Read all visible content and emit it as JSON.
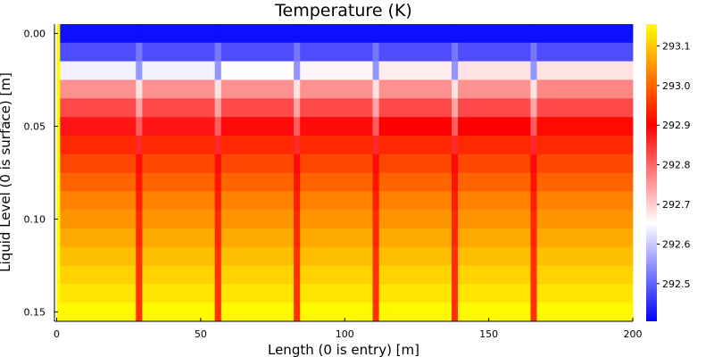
{
  "chart_data": {
    "type": "heatmap",
    "title": "Temperature (K)",
    "xlabel": "Length (0 is entry) [m]",
    "ylabel": "Liquid Level (0 is surface) [m]",
    "xlim": [
      0,
      200
    ],
    "ylim": [
      0.0,
      0.155
    ],
    "y_inverted": true,
    "grid": false,
    "x_ticks": [
      0,
      50,
      100,
      150,
      200
    ],
    "x_tick_labels": [
      "0",
      "50",
      "100",
      "150",
      "200"
    ],
    "y_ticks": [
      0.0,
      0.05,
      0.1,
      0.15
    ],
    "y_tick_labels": [
      "0.00",
      "0.05",
      "0.10",
      "0.15"
    ],
    "x_cell_edges": [
      0,
      1.2,
      27.5,
      29.7,
      54.9,
      57.1,
      82.3,
      84.5,
      109.7,
      111.9,
      137.1,
      139.3,
      164.5,
      166.7,
      200
    ],
    "y_cell_edges": [
      -0.005,
      0.005,
      0.015,
      0.025,
      0.035,
      0.045,
      0.055,
      0.065,
      0.075,
      0.085,
      0.095,
      0.105,
      0.115,
      0.125,
      0.135,
      0.145,
      0.155
    ],
    "row_depths": [
      0.0,
      0.01,
      0.02,
      0.03,
      0.04,
      0.05,
      0.06,
      0.07,
      0.08,
      0.09,
      0.1,
      0.11,
      0.12,
      0.13,
      0.14,
      0.15
    ],
    "values": [
      [
        293.15,
        292.42,
        292.42,
        292.42,
        292.42,
        292.42,
        292.42,
        292.42,
        292.42,
        292.42,
        292.42,
        292.42,
        292.42,
        292.42
      ],
      [
        293.15,
        292.48,
        292.52,
        292.48,
        292.52,
        292.48,
        292.52,
        292.48,
        292.52,
        292.48,
        292.52,
        292.48,
        292.52,
        292.48
      ],
      [
        293.15,
        292.64,
        292.55,
        292.64,
        292.55,
        292.65,
        292.55,
        292.66,
        292.55,
        292.67,
        292.55,
        292.68,
        292.55,
        292.68
      ],
      [
        293.15,
        292.76,
        292.68,
        292.76,
        292.68,
        292.76,
        292.68,
        292.76,
        292.68,
        292.76,
        292.68,
        292.76,
        292.68,
        292.77
      ],
      [
        293.15,
        292.83,
        292.74,
        292.83,
        292.74,
        292.83,
        292.74,
        292.83,
        292.74,
        292.83,
        292.74,
        292.83,
        292.74,
        292.83
      ],
      [
        293.15,
        292.88,
        292.81,
        292.88,
        292.81,
        292.89,
        292.81,
        292.89,
        292.81,
        292.9,
        292.81,
        292.9,
        292.81,
        292.91
      ],
      [
        293.15,
        292.94,
        292.86,
        292.94,
        292.86,
        292.94,
        292.86,
        292.94,
        292.86,
        292.94,
        292.86,
        292.94,
        292.86,
        292.94
      ],
      [
        293.15,
        292.97,
        292.89,
        292.97,
        292.89,
        292.97,
        292.89,
        292.97,
        292.89,
        292.97,
        292.89,
        292.97,
        292.89,
        292.97
      ],
      [
        293.15,
        293.0,
        292.92,
        293.0,
        292.92,
        293.0,
        292.92,
        293.0,
        292.92,
        293.0,
        292.92,
        293.0,
        292.92,
        293.0
      ],
      [
        293.15,
        293.03,
        292.93,
        293.03,
        292.93,
        293.03,
        292.93,
        293.03,
        292.93,
        293.03,
        292.93,
        293.03,
        292.93,
        293.03
      ],
      [
        293.15,
        293.05,
        292.94,
        293.05,
        292.94,
        293.05,
        292.94,
        293.05,
        292.94,
        293.05,
        292.94,
        293.05,
        292.94,
        293.05
      ],
      [
        293.15,
        293.07,
        292.94,
        293.07,
        292.94,
        293.07,
        292.94,
        293.07,
        292.94,
        293.07,
        292.94,
        293.07,
        292.94,
        293.07
      ],
      [
        293.15,
        293.09,
        292.95,
        293.09,
        292.95,
        293.09,
        292.95,
        293.09,
        292.95,
        293.09,
        292.95,
        293.09,
        292.95,
        293.09
      ],
      [
        293.15,
        293.11,
        292.95,
        293.11,
        292.95,
        293.11,
        292.95,
        293.11,
        292.95,
        293.11,
        292.95,
        293.11,
        292.95,
        293.11
      ],
      [
        293.15,
        293.13,
        292.95,
        293.13,
        292.95,
        293.13,
        292.95,
        293.13,
        292.95,
        293.13,
        292.95,
        293.13,
        292.95,
        293.13
      ],
      [
        293.15,
        293.15,
        292.95,
        293.15,
        292.95,
        293.15,
        292.95,
        293.15,
        292.95,
        293.15,
        292.95,
        293.15,
        292.95,
        293.15
      ]
    ],
    "colorbar": {
      "min": 292.405,
      "max": 293.155,
      "ticks": [
        292.5,
        292.6,
        292.7,
        292.8,
        292.9,
        293.0,
        293.1
      ],
      "tick_labels": [
        "292.5",
        "292.6",
        "292.7",
        "292.8",
        "292.9",
        "293.0",
        "293.1"
      ],
      "colors": [
        "#0000ff",
        "#ffffff",
        "#ff0000",
        "#ffff00"
      ],
      "color_stops": [
        0,
        0.33,
        0.66,
        1
      ]
    }
  }
}
